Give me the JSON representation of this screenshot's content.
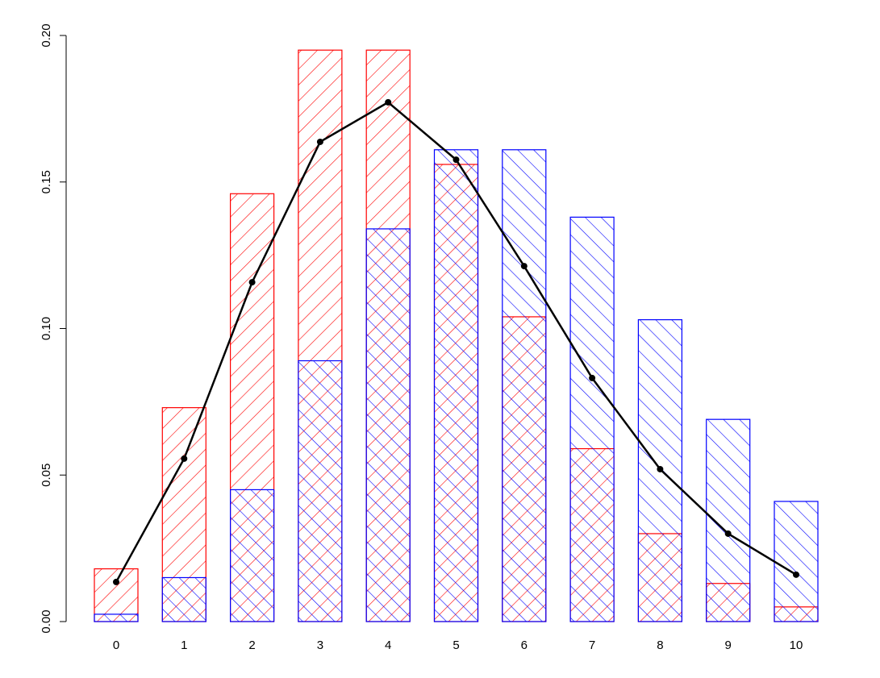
{
  "chart_data": {
    "type": "bar",
    "categories": [
      "0",
      "1",
      "2",
      "3",
      "4",
      "5",
      "6",
      "7",
      "8",
      "9",
      "10"
    ],
    "series": [
      {
        "color": "#ff0000",
        "hatch": "forward",
        "values": [
          0.018,
          0.073,
          0.146,
          0.195,
          0.195,
          0.156,
          0.104,
          0.059,
          0.03,
          0.013,
          0.005
        ]
      },
      {
        "color": "#0000ff",
        "hatch": "backward",
        "values": [
          0.0025,
          0.015,
          0.045,
          0.089,
          0.134,
          0.161,
          0.161,
          0.138,
          0.103,
          0.069,
          0.041
        ]
      },
      {
        "type": "line",
        "color": "#000000",
        "values": [
          0.0135,
          0.0556,
          0.1158,
          0.1637,
          0.1772,
          0.1576,
          0.1213,
          0.0831,
          0.052,
          0.03,
          0.016
        ]
      }
    ],
    "ylim": [
      0,
      0.2
    ],
    "yticks": [
      {
        "value": 0,
        "label": "0.00"
      },
      {
        "value": 0.05,
        "label": "0.05"
      },
      {
        "value": 0.1,
        "label": "0.10"
      },
      {
        "value": 0.15,
        "label": "0.15"
      },
      {
        "value": 0.2,
        "label": "0.20"
      }
    ]
  }
}
